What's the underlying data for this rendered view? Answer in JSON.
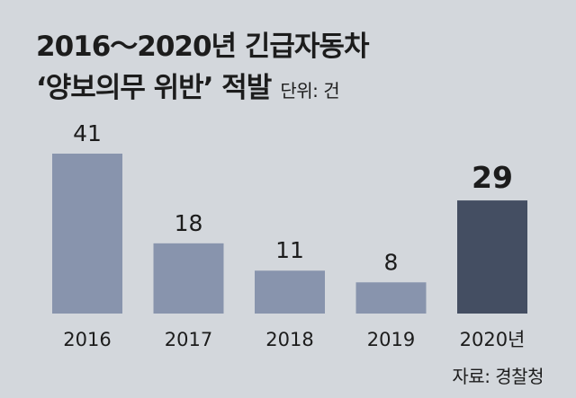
{
  "title": {
    "line1": "2016～2020년 긴급자동차",
    "line2": "‘양보의무 위반’ 적발",
    "unit": "단위: 건"
  },
  "source": "자료: 경찰청",
  "chart_data": {
    "type": "bar",
    "title": "2016～2020년 긴급자동차 ‘양보의무 위반’ 적발",
    "unit": "단위: 건",
    "categories": [
      "2016",
      "2017",
      "2018",
      "2019",
      "2020년"
    ],
    "values": [
      41,
      18,
      11,
      8,
      29
    ],
    "value_labels": [
      "41",
      "18",
      "11",
      "8",
      "29"
    ],
    "highlight_index": 4,
    "ylim": [
      0,
      45
    ],
    "grid": false,
    "legend": "none",
    "colors": {
      "bar": "#8894ad",
      "highlight": "#444e62",
      "background": "#d3d7dc"
    }
  }
}
